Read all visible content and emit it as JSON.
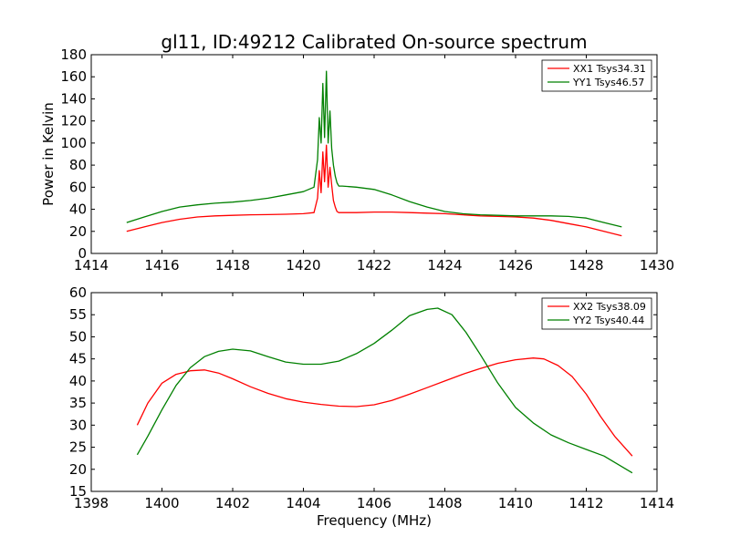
{
  "figure": {
    "title": "gl11, ID:49212 Calibrated On-source spectrum",
    "xlabel": "Frequency (MHz)"
  },
  "chart_data": [
    {
      "type": "line",
      "title": "gl11, ID:49212 Calibrated On-source spectrum",
      "xlabel": "",
      "ylabel": "Power in Kelvin",
      "xlim": [
        1414,
        1430
      ],
      "ylim": [
        0,
        180
      ],
      "xticks": [
        "1414",
        "1416",
        "1418",
        "1420",
        "1422",
        "1424",
        "1426",
        "1428",
        "1430"
      ],
      "yticks": [
        "0",
        "20",
        "40",
        "60",
        "80",
        "100",
        "120",
        "140",
        "160",
        "180"
      ],
      "legend_position": "top-right",
      "grid": false,
      "series": [
        {
          "name": "XX1 Tsys34.31",
          "color": "#ff0000",
          "x": [
            1415.0,
            1415.5,
            1416.0,
            1416.5,
            1417.0,
            1417.5,
            1418.0,
            1418.5,
            1419.0,
            1419.5,
            1420.0,
            1420.3,
            1420.4,
            1420.45,
            1420.5,
            1420.55,
            1420.6,
            1420.65,
            1420.7,
            1420.75,
            1420.8,
            1420.85,
            1420.9,
            1420.95,
            1421.0,
            1421.1,
            1421.5,
            1422.0,
            1422.5,
            1423.0,
            1423.5,
            1424.0,
            1424.5,
            1425.0,
            1425.5,
            1426.0,
            1426.5,
            1427.0,
            1427.5,
            1428.0,
            1428.5,
            1429.0
          ],
          "y": [
            20,
            24,
            28,
            31,
            33,
            34,
            34.5,
            35,
            35.2,
            35.5,
            36,
            37,
            50,
            75,
            55,
            92,
            65,
            98,
            60,
            78,
            62,
            48,
            42,
            38,
            37,
            37,
            37,
            37.5,
            37.5,
            37,
            36.5,
            36,
            35,
            34,
            33.5,
            33,
            32,
            30,
            27,
            24,
            20,
            16
          ]
        },
        {
          "name": "YY1 Tsys46.57",
          "color": "#008000",
          "x": [
            1415.0,
            1415.5,
            1416.0,
            1416.5,
            1417.0,
            1417.5,
            1418.0,
            1418.5,
            1419.0,
            1419.5,
            1420.0,
            1420.3,
            1420.4,
            1420.45,
            1420.5,
            1420.55,
            1420.6,
            1420.65,
            1420.7,
            1420.75,
            1420.8,
            1420.85,
            1420.9,
            1420.95,
            1421.0,
            1421.1,
            1421.5,
            1422.0,
            1422.5,
            1423.0,
            1423.5,
            1424.0,
            1424.5,
            1425.0,
            1425.5,
            1426.0,
            1426.5,
            1427.0,
            1427.5,
            1428.0,
            1428.5,
            1429.0
          ],
          "y": [
            28,
            33,
            38,
            42,
            44,
            45.5,
            46.5,
            48,
            50,
            53,
            56,
            60,
            85,
            123,
            100,
            154,
            105,
            165,
            100,
            129,
            95,
            80,
            70,
            64,
            61,
            61,
            60,
            58,
            53,
            47,
            42,
            38,
            36,
            35,
            34.5,
            34,
            34,
            34,
            33.5,
            32,
            28,
            24
          ]
        }
      ]
    },
    {
      "type": "line",
      "title": "",
      "xlabel": "Frequency (MHz)",
      "ylabel": "",
      "xlim": [
        1398,
        1414
      ],
      "ylim": [
        15,
        60
      ],
      "xticks": [
        "1398",
        "1400",
        "1402",
        "1404",
        "1406",
        "1408",
        "1410",
        "1412",
        "1414"
      ],
      "yticks": [
        "15",
        "20",
        "25",
        "30",
        "35",
        "40",
        "45",
        "50",
        "55",
        "60"
      ],
      "legend_position": "top-right",
      "grid": false,
      "series": [
        {
          "name": "XX2 Tsys38.09",
          "color": "#ff0000",
          "x": [
            1399.3,
            1399.6,
            1400.0,
            1400.4,
            1400.8,
            1401.2,
            1401.6,
            1402.0,
            1402.5,
            1403.0,
            1403.5,
            1404.0,
            1404.5,
            1405.0,
            1405.5,
            1406.0,
            1406.5,
            1407.0,
            1407.5,
            1408.0,
            1408.5,
            1409.0,
            1409.5,
            1410.0,
            1410.5,
            1410.8,
            1411.2,
            1411.6,
            1412.0,
            1412.4,
            1412.8,
            1413.3
          ],
          "y": [
            30,
            35,
            39.5,
            41.5,
            42.3,
            42.5,
            41.8,
            40.5,
            38.7,
            37.2,
            36,
            35.2,
            34.7,
            34.3,
            34.2,
            34.6,
            35.6,
            37,
            38.5,
            40,
            41.5,
            42.8,
            44,
            44.8,
            45.2,
            45,
            43.5,
            41,
            37,
            32,
            27.5,
            23
          ]
        },
        {
          "name": "YY2 Tsys40.44",
          "color": "#008000",
          "x": [
            1399.3,
            1399.6,
            1400.0,
            1400.4,
            1400.8,
            1401.2,
            1401.6,
            1402.0,
            1402.5,
            1403.0,
            1403.5,
            1404.0,
            1404.5,
            1405.0,
            1405.5,
            1406.0,
            1406.5,
            1407.0,
            1407.5,
            1407.8,
            1408.2,
            1408.6,
            1409.0,
            1409.5,
            1410.0,
            1410.5,
            1411.0,
            1411.5,
            1412.0,
            1412.5,
            1413.3
          ],
          "y": [
            23.3,
            27.5,
            33.5,
            39,
            43,
            45.5,
            46.7,
            47.2,
            46.8,
            45.5,
            44.3,
            43.8,
            43.8,
            44.5,
            46.2,
            48.5,
            51.5,
            54.8,
            56.2,
            56.5,
            55,
            51,
            46,
            39.5,
            34,
            30.5,
            27.8,
            26,
            24.5,
            23,
            19.2
          ]
        }
      ]
    }
  ]
}
